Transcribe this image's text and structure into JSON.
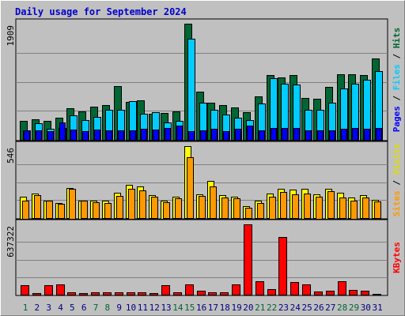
{
  "chart_data": {
    "type": "bar",
    "title": "Daily usage for September 2024",
    "categories": [
      "1",
      "2",
      "3",
      "4",
      "5",
      "6",
      "7",
      "8",
      "9",
      "10",
      "11",
      "12",
      "13",
      "14",
      "15",
      "16",
      "17",
      "18",
      "19",
      "20",
      "21",
      "22",
      "23",
      "24",
      "25",
      "26",
      "27",
      "28",
      "29",
      "30",
      "31"
    ],
    "weekend_days": [
      "1",
      "7",
      "8",
      "14",
      "15",
      "21",
      "22",
      "28",
      "29"
    ],
    "colors": {
      "hits": "#006633",
      "files": "#00ccff",
      "pages": "#0000ff",
      "visits": "#ffff00",
      "sites": "#ff9900",
      "kbytes": "#ff0000",
      "weekend_label": "#006633",
      "weekday_label": "#000080",
      "title": "#0000cc"
    },
    "panels": [
      {
        "id": "hits-files-pages",
        "axis_max_label": "1909",
        "ylim": [
          0,
          1909
        ],
        "legend": [
          "Hits",
          "Files",
          "Pages"
        ],
        "series": [
          {
            "name": "Hits",
            "color": "#006633",
            "values": [
              310,
              340,
              310,
              370,
              520,
              470,
              550,
              570,
              880,
              620,
              650,
              430,
              440,
              470,
              1909,
              790,
              610,
              570,
              530,
              460,
              710,
              1060,
              1030,
              1060,
              690,
              670,
              870,
              1080,
              1080,
              1070,
              1340
            ]
          },
          {
            "name": "Files",
            "color": "#00ccff",
            "values": [
              160,
              270,
              180,
              200,
              400,
              320,
              380,
              490,
              490,
              630,
              430,
              450,
              290,
              310,
              1660,
              610,
              490,
              420,
              360,
              320,
              600,
              1010,
              920,
              910,
              490,
              490,
              610,
              840,
              920,
              990,
              1130
            ]
          },
          {
            "name": "Pages",
            "color": "#0000ff",
            "values": [
              150,
              160,
              140,
              280,
              170,
              140,
              170,
              160,
              160,
              150,
              180,
              170,
              200,
              230,
              140,
              160,
              180,
              140,
              180,
              240,
              160,
              200,
              200,
              200,
              150,
              160,
              160,
              180,
              200,
              180,
              190
            ]
          }
        ]
      },
      {
        "id": "visits-sites",
        "axis_max_label": "546",
        "ylim": [
          0,
          546
        ],
        "legend": [
          "Visits",
          "Sites"
        ],
        "series": [
          {
            "name": "Visits",
            "color": "#ffff00",
            "values": [
              165,
              185,
              135,
              115,
              230,
              135,
              130,
              130,
              190,
              250,
              240,
              175,
              135,
              160,
              546,
              180,
              280,
              175,
              160,
              90,
              130,
              185,
              220,
              215,
              225,
              180,
              225,
              190,
              155,
              175,
              140
            ]
          },
          {
            "name": "Sites",
            "color": "#ff9900",
            "values": [
              135,
              175,
              130,
              110,
              225,
              130,
              120,
              115,
              170,
              225,
              210,
              160,
              120,
              150,
              460,
              170,
              240,
              155,
              150,
              80,
              115,
              165,
              200,
              180,
              185,
              165,
              205,
              155,
              135,
              155,
              125
            ]
          }
        ]
      },
      {
        "id": "kbytes",
        "axis_max_label": "637322",
        "ylim": [
          0,
          637322
        ],
        "legend": [
          "KBytes"
        ],
        "series": [
          {
            "name": "KBytes",
            "color": "#ff0000",
            "values": [
              89000,
              14000,
              89000,
              95000,
              19000,
              14000,
              19000,
              19000,
              19000,
              19000,
              19000,
              14000,
              89000,
              19000,
              96000,
              33000,
              25000,
              25000,
              95000,
              637322,
              120000,
              47000,
              525000,
              115000,
              95000,
              28000,
              33000,
              120000,
              44000,
              35000,
              7000
            ]
          }
        ]
      }
    ]
  }
}
